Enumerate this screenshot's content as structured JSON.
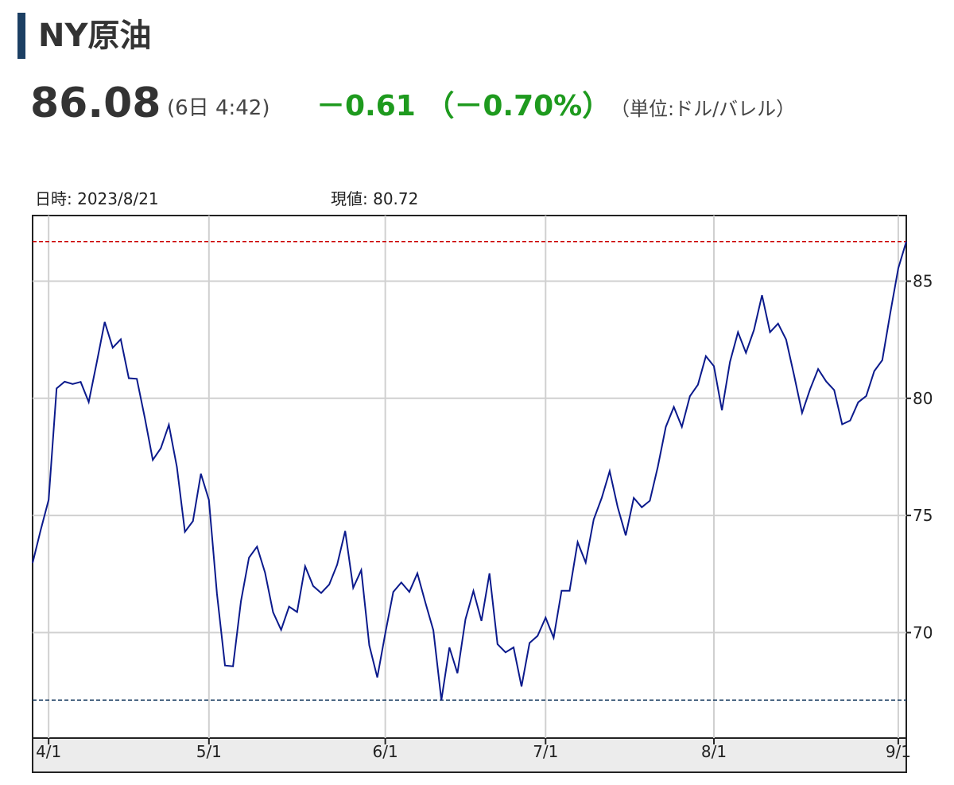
{
  "header": {
    "title": "NY原油",
    "price": "86.08",
    "time": "(6日 4:42)",
    "change": "－0.61 （－0.70%）",
    "unit": "（単位:ドル/バレル）"
  },
  "info": {
    "date_label": "日時: 2023/8/21",
    "value_label": "現値: 80.72"
  },
  "colors": {
    "line": "#0b1a8c",
    "high_line": "#cc0000",
    "low_line": "#1c3f63",
    "change": "#1e9a1e",
    "grid": "#d0d0d0"
  },
  "chart_data": {
    "type": "line",
    "title": "",
    "xlabel": "",
    "ylabel": "",
    "ylim": [
      65.5,
      87.8
    ],
    "yticks": [
      70,
      75,
      80,
      85
    ],
    "xticks": [
      {
        "label": "4/1",
        "index": 2
      },
      {
        "label": "5/1",
        "index": 22
      },
      {
        "label": "6/1",
        "index": 44
      },
      {
        "label": "7/1",
        "index": 64
      },
      {
        "label": "8/1",
        "index": 85
      },
      {
        "label": "9/1",
        "index": 108
      }
    ],
    "reference_lines": {
      "high": 86.69,
      "low": 67.12
    },
    "grid": true,
    "series": [
      {
        "values": [
          72.97,
          74.37,
          75.67,
          80.42,
          80.71,
          80.61,
          80.7,
          79.84,
          81.53,
          83.26,
          82.16,
          82.52,
          80.86,
          80.83,
          79.16,
          77.37,
          77.87,
          78.87,
          77.07,
          74.3,
          74.76,
          76.78,
          75.66,
          71.66,
          68.6,
          68.56,
          71.34,
          73.2,
          73.67,
          72.56,
          70.87,
          70.12,
          71.11,
          70.88,
          72.83,
          71.99,
          71.69,
          72.05,
          72.9,
          74.34,
          71.91,
          72.67,
          69.46,
          68.09,
          69.96,
          71.74,
          72.14,
          71.74,
          72.53,
          71.29,
          70.1,
          67.12,
          69.37,
          68.27,
          70.57,
          71.78,
          70.5,
          72.53,
          69.51,
          69.16,
          69.37,
          67.7,
          69.56,
          69.86,
          70.64,
          69.78,
          71.79,
          71.79,
          73.86,
          72.99,
          74.83,
          75.75,
          76.89,
          75.35,
          74.15,
          75.75,
          75.35,
          75.63,
          77.07,
          78.78,
          79.63,
          78.78,
          80.09,
          80.58,
          81.8,
          81.37,
          79.49,
          81.55,
          82.82,
          81.94,
          82.92,
          84.4,
          82.82,
          83.19,
          82.51,
          80.99,
          79.38,
          80.39,
          81.25,
          80.72,
          80.35,
          78.89,
          79.05,
          79.83,
          80.1,
          81.16,
          81.63,
          83.63,
          85.55,
          86.69
        ]
      }
    ]
  }
}
